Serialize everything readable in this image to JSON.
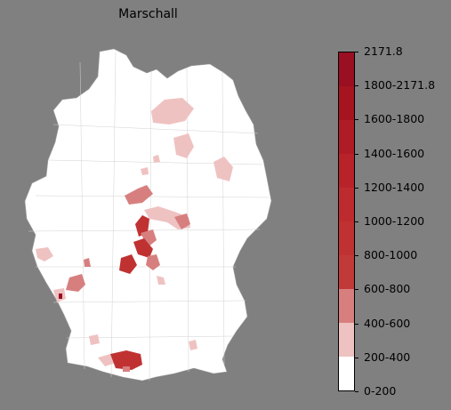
{
  "title": "Marschall",
  "legend": {
    "labels": [
      "2171.8",
      "1800-2171.8",
      "1600-1800",
      "1400-1600",
      "1200-1400",
      "1000-1200",
      "800-1000",
      "600-800",
      "400-600",
      "200-400",
      "0-200"
    ],
    "colors_top_to_bottom": [
      "#9a0f22",
      "#a5141f",
      "#b01c25",
      "#b8232a",
      "#bd2b2e",
      "#c03232",
      "#c23a38",
      "#c6453f",
      "#d77f7f",
      "#efc2c2",
      "#ffffff"
    ]
  },
  "map": {
    "country": "Germany",
    "base_color": "#ffffff",
    "border_color": "#bbbbbb"
  }
}
